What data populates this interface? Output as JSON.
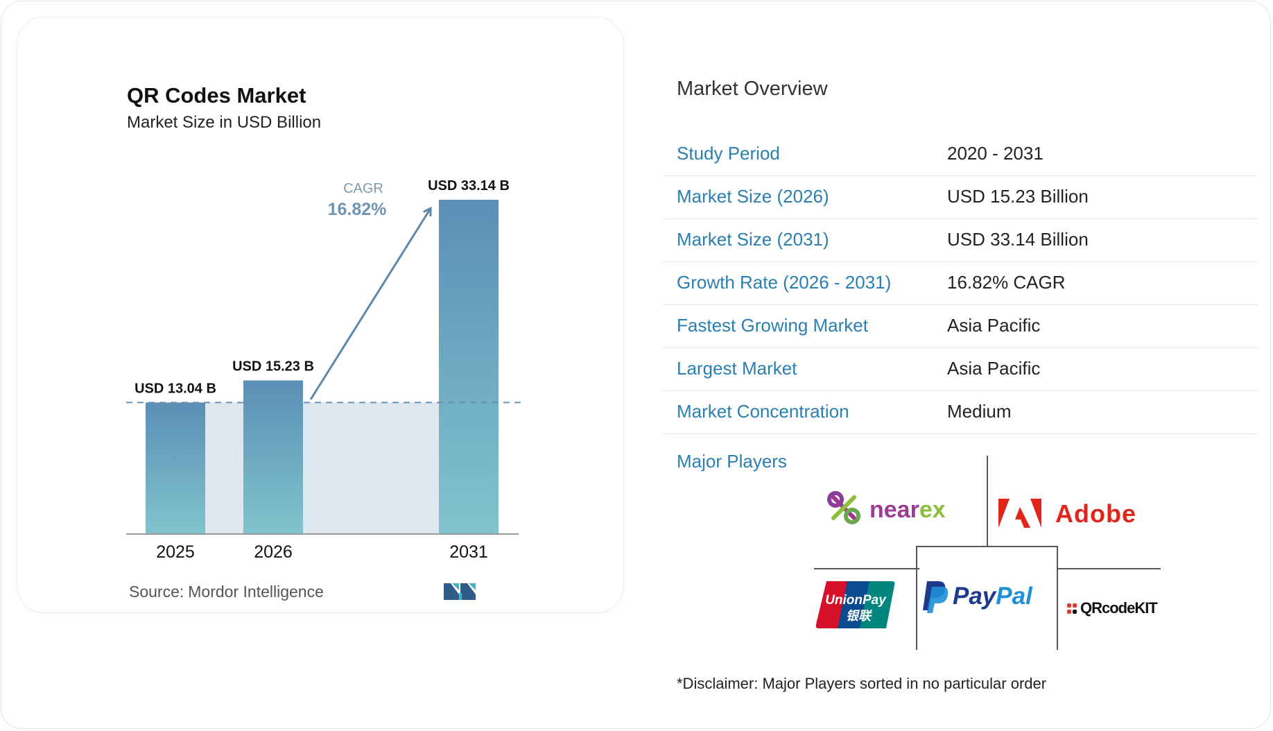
{
  "chart": {
    "title": "QR Codes Market",
    "subtitle": "Market Size in USD Billion",
    "cagr_label": "CAGR",
    "cagr_value": "16.82%",
    "source_prefix": "Source:",
    "source_name": "Mordor Intelligence",
    "logo_text": "MI"
  },
  "chart_data": {
    "type": "bar",
    "title": "QR Codes Market",
    "subtitle": "Market Size in USD Billion",
    "categories": [
      "2025",
      "2026",
      "2031"
    ],
    "values": [
      13.04,
      15.23,
      33.14
    ],
    "data_labels": [
      "USD 13.04 B",
      "USD 15.23 B",
      "USD 33.14 B"
    ],
    "annotation": "CAGR 16.82%",
    "ylim": [
      0,
      33.14
    ],
    "grid": false,
    "colors": {
      "bar_top": "#5a8fb5",
      "bar_bottom": "#7fc4cc",
      "arrow": "#5c87a8",
      "baseline_fill": "#dde7f0"
    }
  },
  "overview": {
    "title": "Market Overview",
    "rows": [
      {
        "label": "Study Period",
        "value": "2020 - 2031"
      },
      {
        "label": "Market Size (2026)",
        "value": "USD 15.23 Billion"
      },
      {
        "label": "Market Size (2031)",
        "value": "USD 33.14 Billion"
      },
      {
        "label": "Growth Rate (2026 - 2031)",
        "value": "16.82% CAGR"
      },
      {
        "label": "Fastest Growing Market",
        "value": "Asia Pacific"
      },
      {
        "label": "Largest Market",
        "value": "Asia Pacific"
      },
      {
        "label": "Market Concentration",
        "value": "Medium"
      }
    ]
  },
  "players": {
    "label": "Major Players",
    "logos": [
      {
        "name": "nearex",
        "text": "nearex"
      },
      {
        "name": "Adobe",
        "text": "Adobe"
      },
      {
        "name": "UnionPay",
        "text": "UnionPay",
        "text2": "银联"
      },
      {
        "name": "PayPal",
        "text_a": "Pay",
        "text_b": "Pal"
      },
      {
        "name": "QRcodeKIT",
        "text": "QRcodeKIT"
      }
    ]
  },
  "disclaimer": "*Disclaimer: Major Players sorted in no particular order"
}
